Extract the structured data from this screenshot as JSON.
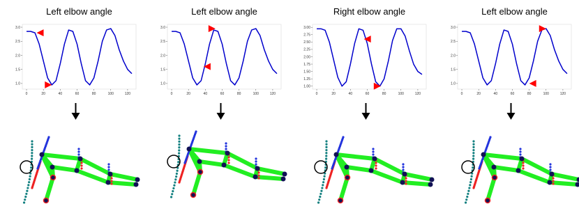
{
  "chart_data": [
    {
      "type": "line",
      "title": "Left elbow angle",
      "x": [
        0,
        5,
        10,
        15,
        20,
        25,
        30,
        35,
        40,
        45,
        50,
        55,
        60,
        65,
        70,
        75,
        80,
        85,
        90,
        95,
        100,
        105,
        110,
        115,
        120,
        125
      ],
      "series": [
        {
          "color": "#0000cc",
          "values": [
            2.85,
            2.85,
            2.8,
            2.4,
            1.8,
            1.2,
            0.95,
            1.1,
            1.7,
            2.4,
            2.9,
            2.85,
            2.4,
            1.7,
            1.1,
            0.95,
            1.2,
            1.8,
            2.5,
            2.9,
            2.95,
            2.7,
            2.2,
            1.8,
            1.5,
            1.35
          ]
        }
      ],
      "markers": {
        "color": "#ff0000",
        "x": [
          12,
          30
        ],
        "y": [
          2.8,
          0.95
        ]
      },
      "xlim": [
        -5,
        130
      ],
      "ylim": [
        0.8,
        3.1
      ],
      "xticks": [
        0,
        20,
        40,
        60,
        80,
        100,
        120
      ],
      "yticks": [
        {
          "value": 1,
          "label": "1.0"
        },
        {
          "value": 1.5,
          "label": "1.5"
        },
        {
          "value": 2,
          "label": "2.0"
        },
        {
          "value": 2.5,
          "label": "2.5"
        },
        {
          "value": 3,
          "label": "3.0"
        }
      ]
    },
    {
      "type": "line",
      "title": "Left elbow angle",
      "x": [
        0,
        5,
        10,
        15,
        20,
        25,
        30,
        35,
        40,
        45,
        50,
        55,
        60,
        65,
        70,
        75,
        80,
        85,
        90,
        95,
        100,
        105,
        110,
        115,
        120,
        125
      ],
      "series": [
        {
          "color": "#0000cc",
          "values": [
            2.85,
            2.85,
            2.8,
            2.4,
            1.8,
            1.2,
            0.95,
            1.1,
            1.7,
            2.4,
            2.9,
            2.85,
            2.4,
            1.7,
            1.1,
            0.95,
            1.2,
            1.8,
            2.5,
            2.9,
            2.95,
            2.7,
            2.2,
            1.8,
            1.5,
            1.35
          ]
        }
      ],
      "markers": {
        "color": "#ff0000",
        "x": [
          38,
          52
        ],
        "y": [
          1.6,
          2.95
        ]
      },
      "xlim": [
        -5,
        130
      ],
      "ylim": [
        0.8,
        3.1
      ],
      "xticks": [
        0,
        20,
        40,
        60,
        80,
        100,
        120
      ],
      "yticks": [
        {
          "value": 1,
          "label": "1.0"
        },
        {
          "value": 1.5,
          "label": "1.5"
        },
        {
          "value": 2,
          "label": "2.0"
        },
        {
          "value": 2.5,
          "label": "2.5"
        },
        {
          "value": 3,
          "label": "3.0"
        }
      ]
    },
    {
      "type": "line",
      "title": "Right elbow angle",
      "x": [
        0,
        5,
        10,
        15,
        20,
        25,
        30,
        35,
        40,
        45,
        50,
        55,
        60,
        65,
        70,
        75,
        80,
        85,
        90,
        95,
        100,
        105,
        110,
        115,
        120,
        125
      ],
      "series": [
        {
          "color": "#0000cc",
          "values": [
            2.95,
            2.95,
            2.9,
            2.5,
            1.9,
            1.3,
            1.0,
            1.15,
            1.75,
            2.45,
            2.95,
            2.9,
            2.45,
            1.75,
            1.15,
            1.0,
            1.25,
            1.85,
            2.55,
            2.95,
            2.95,
            2.7,
            2.2,
            1.75,
            1.5,
            1.4
          ]
        }
      ],
      "markers": {
        "color": "#ff0000",
        "x": [
          56,
          76
        ],
        "y": [
          2.6,
          1.0
        ]
      },
      "xlim": [
        -5,
        130
      ],
      "ylim": [
        0.9,
        3.1
      ],
      "xticks": [
        0,
        20,
        40,
        60,
        80,
        100,
        120
      ],
      "yticks": [
        {
          "value": 1,
          "label": "1.00"
        },
        {
          "value": 1.25,
          "label": "1.25"
        },
        {
          "value": 1.5,
          "label": "1.50"
        },
        {
          "value": 1.75,
          "label": "1.75"
        },
        {
          "value": 2,
          "label": "2.00"
        },
        {
          "value": 2.25,
          "label": "2.25"
        },
        {
          "value": 2.5,
          "label": "2.50"
        },
        {
          "value": 2.75,
          "label": "2.75"
        },
        {
          "value": 3,
          "label": "3.00"
        }
      ]
    },
    {
      "type": "line",
      "title": "Left elbow angle",
      "x": [
        0,
        5,
        10,
        15,
        20,
        25,
        30,
        35,
        40,
        45,
        50,
        55,
        60,
        65,
        70,
        75,
        80,
        85,
        90,
        95,
        100,
        105,
        110,
        115,
        120,
        125
      ],
      "series": [
        {
          "color": "#0000cc",
          "values": [
            2.85,
            2.85,
            2.8,
            2.4,
            1.8,
            1.2,
            0.95,
            1.1,
            1.7,
            2.4,
            2.9,
            2.85,
            2.4,
            1.7,
            1.1,
            0.95,
            1.2,
            1.8,
            2.5,
            2.9,
            2.95,
            2.7,
            2.2,
            1.8,
            1.5,
            1.35
          ]
        }
      ],
      "markers": {
        "color": "#ff0000",
        "x": [
          80,
          100
        ],
        "y": [
          1.0,
          2.95
        ]
      },
      "xlim": [
        -5,
        130
      ],
      "ylim": [
        0.8,
        3.1
      ],
      "xticks": [
        0,
        20,
        40,
        60,
        80,
        100,
        120
      ],
      "yticks": [
        {
          "value": 1,
          "label": "1.0"
        },
        {
          "value": 1.5,
          "label": "1.5"
        },
        {
          "value": 2,
          "label": "2.0"
        },
        {
          "value": 2.5,
          "label": "2.5"
        },
        {
          "value": 3,
          "label": "3.0"
        }
      ]
    }
  ]
}
